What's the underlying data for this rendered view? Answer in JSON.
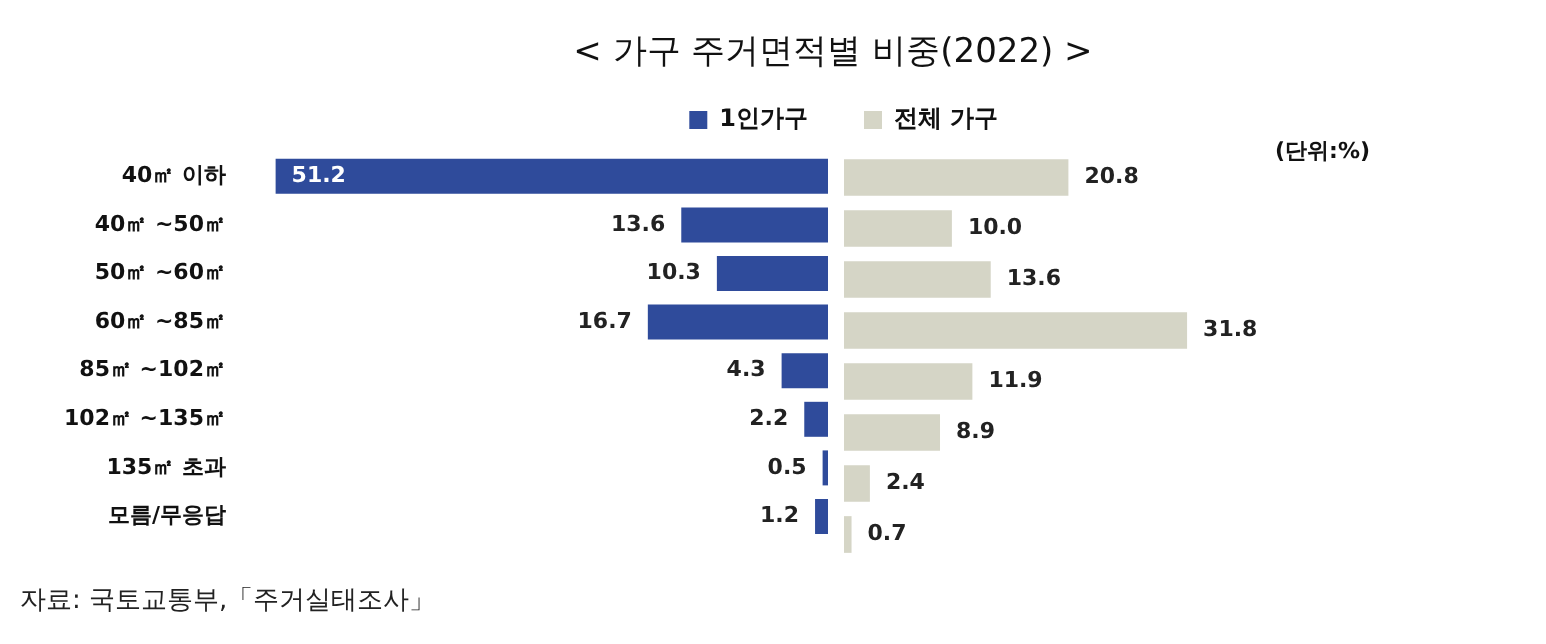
{
  "chart_data": [
    {
      "type": "bar",
      "orientation": "horizontal",
      "title": "< 가구 주거면적별 비중(2022) >",
      "categories": [
        "40㎡ 이하",
        "40㎡ ~50㎡",
        "50㎡ ~60㎡",
        "60㎡ ~85㎡",
        "85㎡ ~102㎡",
        "102㎡ ~135㎡",
        "135㎡ 초과",
        "모름/무응답"
      ],
      "series": [
        {
          "name": "1인가구",
          "color": "#2f4b9b",
          "values": [
            51.2,
            13.6,
            10.3,
            16.7,
            4.3,
            2.2,
            0.5,
            1.2
          ]
        }
      ],
      "data_labels": true,
      "grid": false,
      "legend": "top right",
      "tick_labels": "y",
      "annotations": [
        "자료: 국토교통부,「주거실태조사」"
      ]
    },
    {
      "type": "bar",
      "orientation": "horizontal",
      "categories": [
        null,
        null,
        null,
        null,
        null,
        null,
        null,
        null
      ],
      "series": [
        {
          "name": "전체 가구",
          "color": "#d5d5c6",
          "values": [
            20.8,
            10.0,
            13.6,
            31.8,
            11.9,
            8.9,
            2.4,
            0.7
          ],
          "value_labels": [
            "20.8",
            "10.0",
            "13.6",
            "31.8",
            "11.9",
            "8.9",
            "2.4",
            "0.7"
          ]
        }
      ],
      "grid": false,
      "legend": "top left",
      "tick_labels": false,
      "annotations": [
        "(단위:%)"
      ]
    }
  ]
}
